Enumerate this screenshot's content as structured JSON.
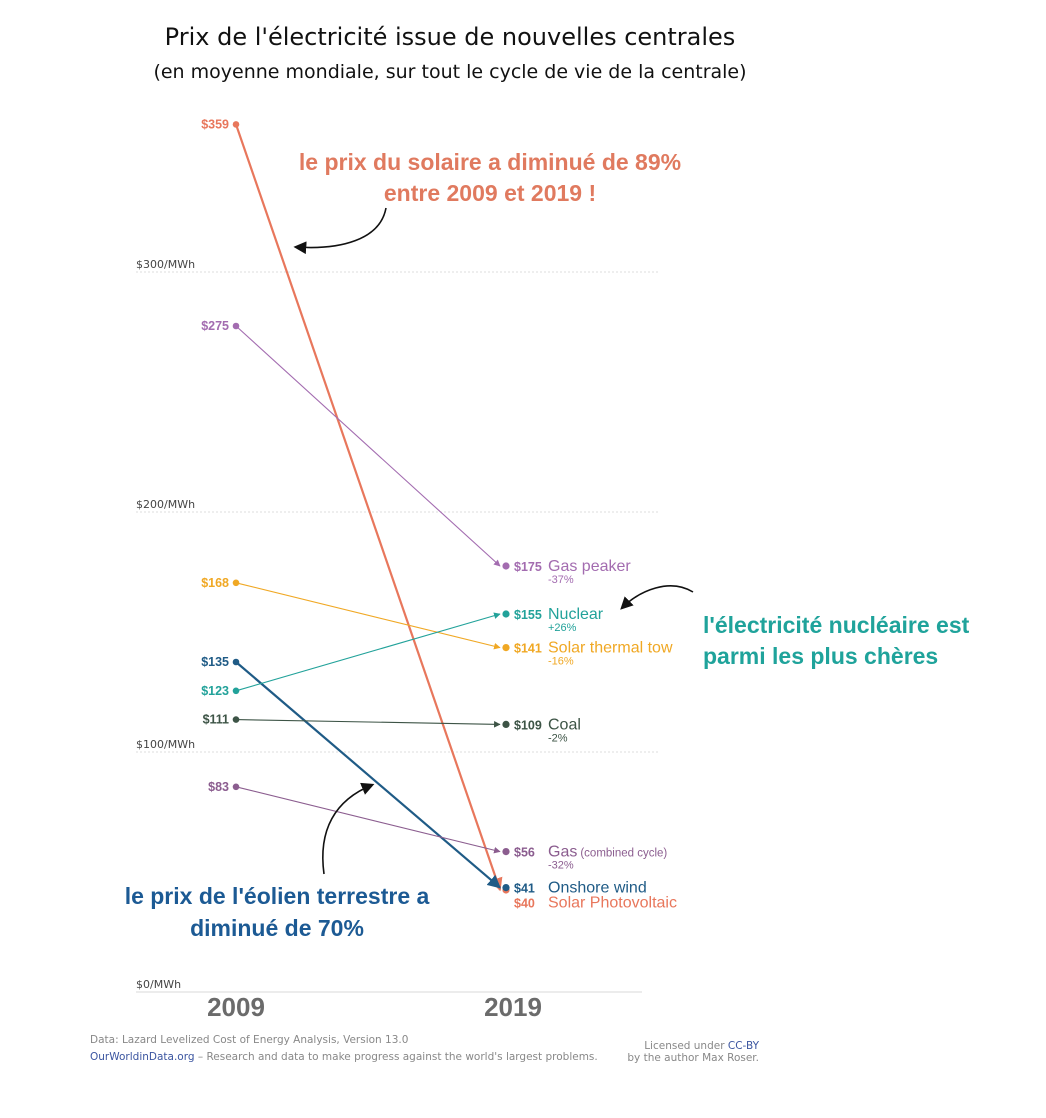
{
  "chart_data": {
    "type": "line",
    "title": "Prix de l'électricité issue de nouvelles centrales",
    "subtitle": "(en moyenne mondiale, sur tout le cycle de vie de la centrale)",
    "x": [
      "2009",
      "2019"
    ],
    "y_ticks": [
      {
        "value": 0,
        "label": "$0/MWh"
      },
      {
        "value": 100,
        "label": "$100/MWh"
      },
      {
        "value": 200,
        "label": "$200/MWh"
      },
      {
        "value": 300,
        "label": "$300/MWh"
      }
    ],
    "ylim": [
      0,
      359
    ],
    "grid": true,
    "series": [
      {
        "name": "Solar Photovoltaic",
        "name_suffix": "",
        "values": [
          359,
          40
        ],
        "start_label": "$359",
        "end_label": "$40",
        "change": "",
        "color": "#e8775c"
      },
      {
        "name": "Gas peaker",
        "name_suffix": "",
        "values": [
          275,
          175
        ],
        "start_label": "$275",
        "end_label": "$175",
        "change": "-37%",
        "color": "#a36cb0"
      },
      {
        "name": "Solar thermal tow",
        "name_suffix": "",
        "values": [
          168,
          141
        ],
        "start_label": "$168",
        "end_label": "$141",
        "change": "-16%",
        "color": "#f0a824"
      },
      {
        "name": "Onshore wind",
        "name_suffix": "",
        "values": [
          135,
          41
        ],
        "start_label": "$135",
        "end_label": "$41",
        "change": "",
        "color": "#1f5b86"
      },
      {
        "name": "Nuclear",
        "name_suffix": "",
        "values": [
          123,
          155
        ],
        "start_label": "$123",
        "end_label": "$155",
        "change": "+26%",
        "color": "#22a29a"
      },
      {
        "name": "Coal",
        "name_suffix": "",
        "values": [
          111,
          109
        ],
        "start_label": "$111",
        "end_label": "$109",
        "change": "-2%",
        "color": "#3d5446"
      },
      {
        "name": "Gas",
        "name_suffix": "(combined cycle)",
        "values": [
          83,
          56
        ],
        "start_label": "$83",
        "end_label": "$56",
        "change": "-32%",
        "color": "#8b5d8f"
      }
    ]
  },
  "annotations": {
    "solar_line1": "le prix du solaire a diminué de 89%",
    "solar_line2": "entre 2009 et 2019 !",
    "nuclear_line1": "l'électricité nucléaire est",
    "nuclear_line2": "parmi les plus chères",
    "wind_line1": "le prix de l'éolien terrestre a",
    "wind_line2": "diminué de 70%",
    "colors": {
      "solar": "#e07a5f",
      "nuclear": "#1fa39b",
      "wind": "#1c5a94"
    }
  },
  "footer": {
    "data_source": "Data: Lazard Levelized Cost of Energy Analysis, Version 13.0",
    "site": "OurWorldinData.org",
    "tagline": " – Research and data to make progress against the world's largest problems.",
    "license_prefix": "Licensed under ",
    "license": "CC-BY",
    "author": "by the author Max Roser."
  }
}
